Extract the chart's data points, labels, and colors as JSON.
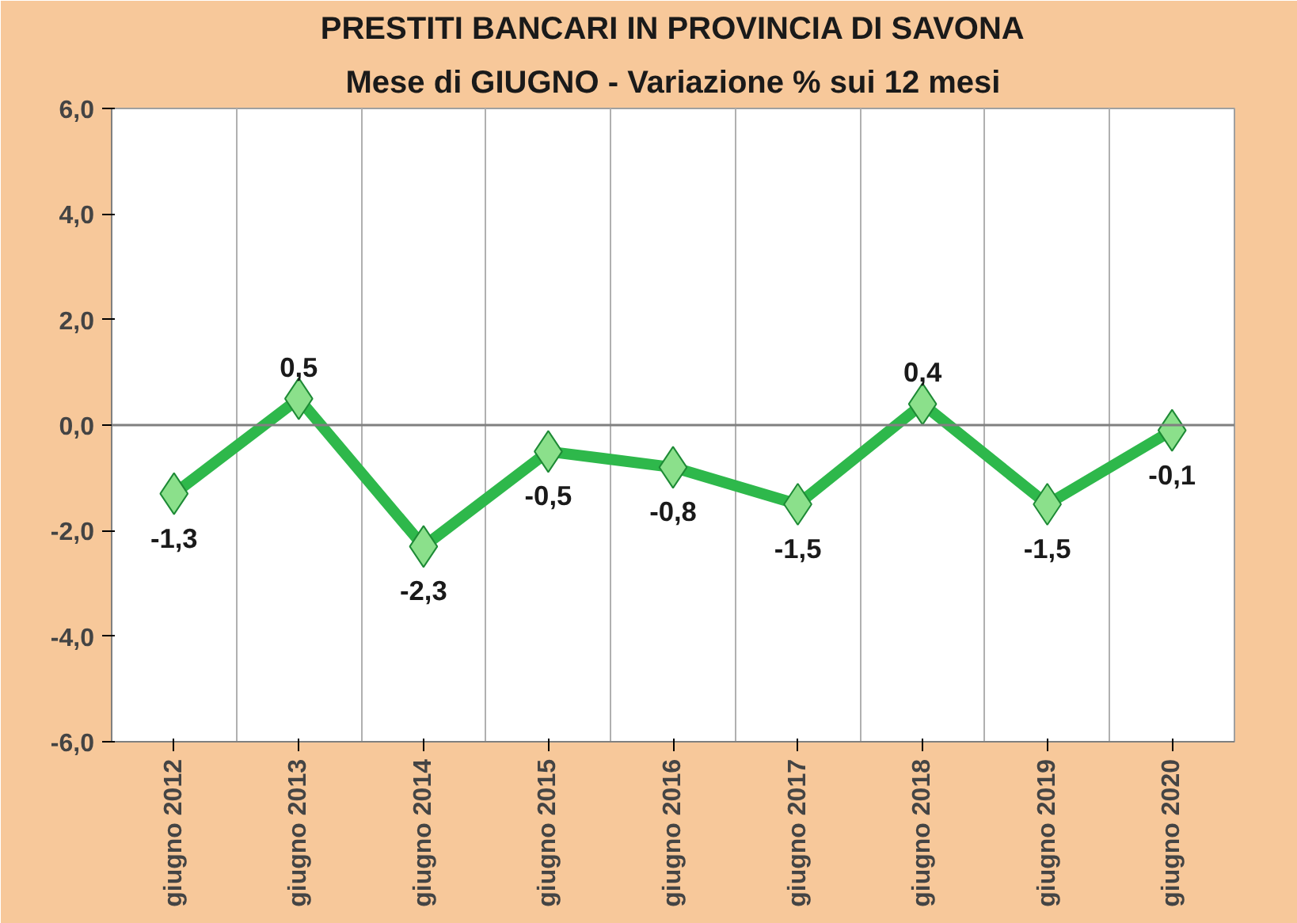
{
  "chart_data": {
    "type": "line",
    "title": "PRESTITI BANCARI IN PROVINCIA DI SAVONA",
    "subtitle": "Mese di GIUGNO - Variazione % sui 12 mesi",
    "categories": [
      "giugno 2012",
      "giugno 2013",
      "giugno 2014",
      "giugno 2015",
      "giugno 2016",
      "giugno 2017",
      "giugno 2018",
      "giugno 2019",
      "giugno 2020"
    ],
    "series": [
      {
        "color": "#2eb84b",
        "values": [
          -1.3,
          0.5,
          -2.3,
          -0.5,
          -0.8,
          -1.5,
          0.4,
          -1.5,
          -0.1
        ],
        "value_labels": [
          "-1,3",
          "0,5",
          "-2,3",
          "-0,5",
          "-0,8",
          "-1,5",
          "0,4",
          "-1,5",
          "-0,1"
        ]
      }
    ],
    "ylim": [
      -6,
      6
    ],
    "yticks": [
      {
        "value": -6,
        "label": "-6,0"
      },
      {
        "value": -4,
        "label": "-4,0"
      },
      {
        "value": -2,
        "label": "-2,0"
      },
      {
        "value": 0,
        "label": "0,0"
      },
      {
        "value": 2,
        "label": "2,0"
      },
      {
        "value": 4,
        "label": "4,0"
      },
      {
        "value": 6,
        "label": "6,0"
      }
    ],
    "ref_lines": [
      {
        "axis": "y",
        "value": 0
      }
    ],
    "grid": "x",
    "marker": "diamond",
    "line_style": "solid"
  }
}
